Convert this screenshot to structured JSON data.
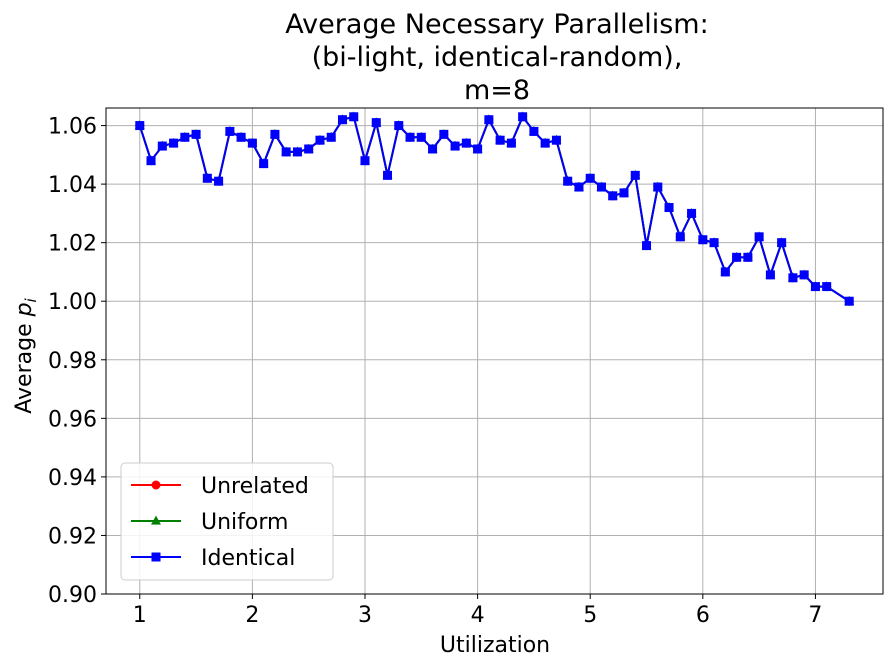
{
  "chart_data": {
    "type": "line",
    "title_lines": [
      "Average Necessary Parallelism:",
      "(bi-light, identical-random),",
      "m=8"
    ],
    "xlabel": "Utilization",
    "ylabel_main": "Average ",
    "ylabel_symbol": "p",
    "ylabel_sub": "i",
    "xlim": [
      0.7,
      7.6
    ],
    "ylim": [
      0.9,
      1.066
    ],
    "xticks": [
      1,
      2,
      3,
      4,
      5,
      6,
      7
    ],
    "xtick_labels": [
      "1",
      "2",
      "3",
      "4",
      "5",
      "6",
      "7"
    ],
    "yticks": [
      0.9,
      0.92,
      0.94,
      0.96,
      0.98,
      1.0,
      1.02,
      1.04,
      1.06
    ],
    "ytick_labels": [
      "0.90",
      "0.92",
      "0.94",
      "0.96",
      "0.98",
      "1.00",
      "1.02",
      "1.04",
      "1.06"
    ],
    "grid": true,
    "legend_position": "lower-left",
    "x": [
      1.0,
      1.1,
      1.2,
      1.3,
      1.4,
      1.5,
      1.6,
      1.7,
      1.8,
      1.9,
      2.0,
      2.1,
      2.2,
      2.3,
      2.4,
      2.5,
      2.6,
      2.7,
      2.8,
      2.9,
      3.0,
      3.1,
      3.2,
      3.3,
      3.4,
      3.5,
      3.6,
      3.7,
      3.8,
      3.9,
      4.0,
      4.1,
      4.2,
      4.3,
      4.4,
      4.5,
      4.6,
      4.7,
      4.8,
      4.9,
      5.0,
      5.1,
      5.2,
      5.3,
      5.4,
      5.5,
      5.6,
      5.7,
      5.8,
      5.9,
      6.0,
      6.1,
      6.2,
      6.3,
      6.4,
      6.5,
      6.6,
      6.7,
      6.8,
      6.9,
      7.0,
      7.1,
      7.3
    ],
    "series": [
      {
        "name": "Unrelated",
        "color": "#ff0000",
        "marker": "circle",
        "values": [
          1.06,
          1.048,
          1.053,
          1.054,
          1.056,
          1.057,
          1.042,
          1.041,
          1.058,
          1.056,
          1.054,
          1.047,
          1.057,
          1.051,
          1.051,
          1.052,
          1.055,
          1.056,
          1.062,
          1.063,
          1.048,
          1.061,
          1.043,
          1.06,
          1.056,
          1.056,
          1.052,
          1.057,
          1.053,
          1.054,
          1.052,
          1.062,
          1.055,
          1.054,
          1.063,
          1.058,
          1.054,
          1.055,
          1.041,
          1.039,
          1.042,
          1.039,
          1.036,
          1.037,
          1.043,
          1.019,
          1.039,
          1.032,
          1.022,
          1.03,
          1.021,
          1.02,
          1.01,
          1.015,
          1.015,
          1.022,
          1.009,
          1.02,
          1.008,
          1.009,
          1.005,
          1.005,
          1.0
        ]
      },
      {
        "name": "Uniform",
        "color": "#008000",
        "marker": "triangle",
        "values": [
          1.06,
          1.048,
          1.053,
          1.054,
          1.056,
          1.057,
          1.042,
          1.041,
          1.058,
          1.056,
          1.054,
          1.047,
          1.057,
          1.051,
          1.051,
          1.052,
          1.055,
          1.056,
          1.062,
          1.063,
          1.048,
          1.061,
          1.043,
          1.06,
          1.056,
          1.056,
          1.052,
          1.057,
          1.053,
          1.054,
          1.052,
          1.062,
          1.055,
          1.054,
          1.063,
          1.058,
          1.054,
          1.055,
          1.041,
          1.039,
          1.042,
          1.039,
          1.036,
          1.037,
          1.043,
          1.019,
          1.039,
          1.032,
          1.022,
          1.03,
          1.021,
          1.02,
          1.01,
          1.015,
          1.015,
          1.022,
          1.009,
          1.02,
          1.008,
          1.009,
          1.005,
          1.005,
          1.0
        ]
      },
      {
        "name": "Identical",
        "color": "#0000ff",
        "marker": "square",
        "values": [
          1.06,
          1.048,
          1.053,
          1.054,
          1.056,
          1.057,
          1.042,
          1.041,
          1.058,
          1.056,
          1.054,
          1.047,
          1.057,
          1.051,
          1.051,
          1.052,
          1.055,
          1.056,
          1.062,
          1.063,
          1.048,
          1.061,
          1.043,
          1.06,
          1.056,
          1.056,
          1.052,
          1.057,
          1.053,
          1.054,
          1.052,
          1.062,
          1.055,
          1.054,
          1.063,
          1.058,
          1.054,
          1.055,
          1.041,
          1.039,
          1.042,
          1.039,
          1.036,
          1.037,
          1.043,
          1.019,
          1.039,
          1.032,
          1.022,
          1.03,
          1.021,
          1.02,
          1.01,
          1.015,
          1.015,
          1.022,
          1.009,
          1.02,
          1.008,
          1.009,
          1.005,
          1.005,
          1.0
        ]
      }
    ]
  }
}
